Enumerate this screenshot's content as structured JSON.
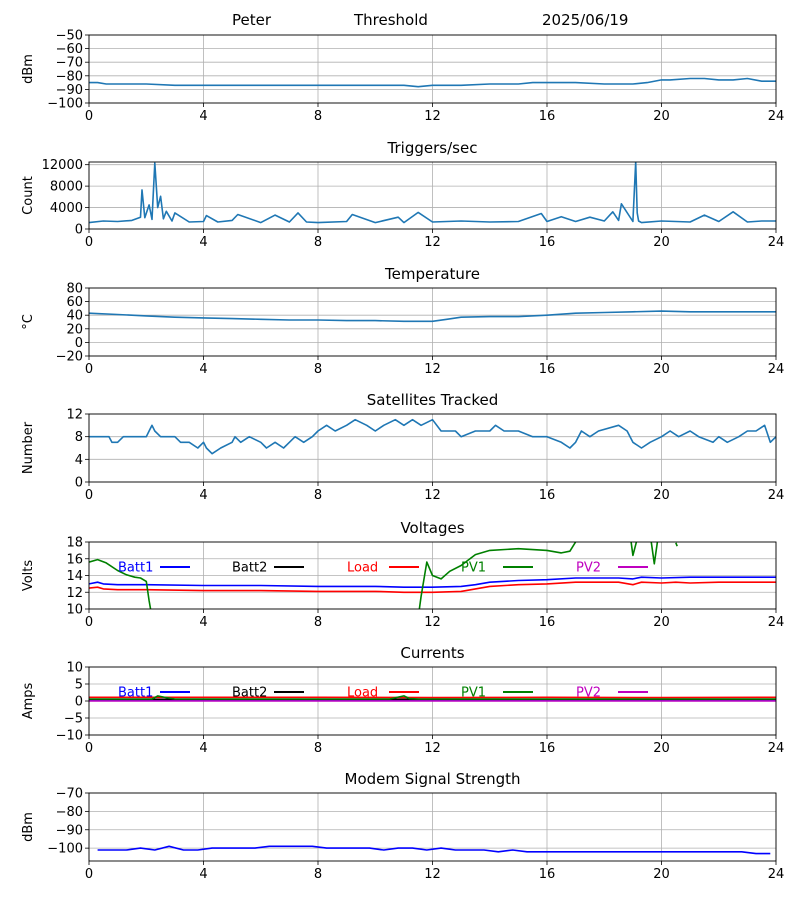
{
  "header": {
    "name": "Peter",
    "mode": "Threshold",
    "date": "2025/06/19"
  },
  "colors": {
    "series_default": "#1f77b4",
    "batt1": "#0000ff",
    "batt2": "#000000",
    "load": "#ff0000",
    "pv1": "#008000",
    "pv2": "#bf00bf",
    "grid": "#b0b0b0"
  },
  "chart_data": [
    {
      "id": "threshold",
      "type": "line",
      "title": "",
      "xlabel": "",
      "ylabel": "dBm",
      "xlim": [
        0,
        24
      ],
      "ylim": [
        -100,
        -50
      ],
      "xticks": [
        0,
        4,
        8,
        12,
        16,
        20,
        24
      ],
      "yticks": [
        -100,
        -90,
        -80,
        -70,
        -60,
        -50
      ],
      "grid": true,
      "series": [
        {
          "color_key": "series_default",
          "x": [
            0,
            0.3,
            0.6,
            1,
            2,
            3,
            4,
            6,
            8,
            10,
            11,
            11.5,
            12,
            13,
            14,
            15,
            15.5,
            16,
            17,
            18,
            19,
            19.5,
            20,
            20.3,
            21,
            21.5,
            22,
            22.5,
            23,
            23.5,
            24
          ],
          "y": [
            -85,
            -85,
            -86,
            -86,
            -86,
            -87,
            -87,
            -87,
            -87,
            -87,
            -87,
            -88,
            -87,
            -87,
            -86,
            -86,
            -85,
            -85,
            -85,
            -86,
            -86,
            -85,
            -83,
            -83,
            -82,
            -82,
            -83,
            -83,
            -82,
            -84,
            -84
          ]
        }
      ]
    },
    {
      "id": "triggers",
      "type": "line",
      "title": "Triggers/sec",
      "xlabel": "",
      "ylabel": "Count",
      "xlim": [
        0,
        24
      ],
      "ylim": [
        0,
        12500
      ],
      "xticks": [
        0,
        4,
        8,
        12,
        16,
        20,
        24
      ],
      "yticks": [
        0,
        4000,
        8000,
        12000
      ],
      "grid": true,
      "series": [
        {
          "color_key": "series_default",
          "x": [
            0,
            0.5,
            1,
            1.5,
            1.8,
            1.85,
            1.95,
            2.1,
            2.2,
            2.3,
            2.4,
            2.5,
            2.6,
            2.7,
            2.9,
            3,
            3.5,
            4,
            4.1,
            4.5,
            5,
            5.2,
            6,
            6.5,
            7,
            7.3,
            7.6,
            8,
            9,
            9.2,
            10,
            10.8,
            11,
            11.5,
            12,
            13,
            14,
            15,
            15.8,
            16,
            16.5,
            17,
            17.5,
            18,
            18.3,
            18.5,
            18.6,
            19,
            19.1,
            19.15,
            19.2,
            19.3,
            20,
            21,
            21.5,
            22,
            22.5,
            23,
            23.5,
            24
          ],
          "y": [
            1200,
            1500,
            1400,
            1600,
            2200,
            7300,
            2100,
            4500,
            1800,
            12300,
            4000,
            6100,
            1900,
            3300,
            1500,
            3000,
            1300,
            1400,
            2500,
            1300,
            1600,
            2700,
            1200,
            2600,
            1300,
            3000,
            1300,
            1200,
            1400,
            2700,
            1200,
            2200,
            1200,
            3100,
            1300,
            1500,
            1300,
            1400,
            2900,
            1400,
            2300,
            1400,
            2200,
            1500,
            3200,
            1600,
            4700,
            1400,
            12500,
            3000,
            1500,
            1200,
            1500,
            1300,
            2600,
            1400,
            3200,
            1300,
            1500,
            1500
          ]
        }
      ]
    },
    {
      "id": "temperature",
      "type": "line",
      "title": "Temperature",
      "xlabel": "",
      "ylabel": "°C",
      "xlim": [
        0,
        24
      ],
      "ylim": [
        -20,
        80
      ],
      "xticks": [
        0,
        4,
        8,
        12,
        16,
        20,
        24
      ],
      "yticks": [
        -20,
        0,
        20,
        40,
        60,
        80
      ],
      "grid": true,
      "series": [
        {
          "color_key": "series_default",
          "x": [
            0,
            1,
            2,
            3,
            4,
            5,
            6,
            7,
            8,
            9,
            10,
            11,
            12,
            12.5,
            13,
            14,
            15,
            16,
            17,
            18,
            19,
            20,
            21,
            22,
            23,
            24
          ],
          "y": [
            43,
            41,
            39,
            37,
            36,
            35,
            34,
            33,
            33,
            32,
            32,
            31,
            31,
            34,
            37,
            38,
            38,
            40,
            43,
            44,
            45,
            46,
            45,
            45,
            45,
            45
          ]
        }
      ]
    },
    {
      "id": "satellites",
      "type": "line",
      "title": "Satellites Tracked",
      "xlabel": "",
      "ylabel": "Number",
      "xlim": [
        0,
        24
      ],
      "ylim": [
        0,
        12
      ],
      "xticks": [
        0,
        4,
        8,
        12,
        16,
        20,
        24
      ],
      "yticks": [
        0,
        4,
        8,
        12
      ],
      "grid": true,
      "series": [
        {
          "color_key": "series_default",
          "x": [
            0,
            0.7,
            0.8,
            1,
            1.2,
            2,
            2.1,
            2.2,
            2.3,
            2.5,
            2.6,
            3,
            3.2,
            3.5,
            3.8,
            4,
            4.1,
            4.3,
            4.6,
            5,
            5.1,
            5.3,
            5.6,
            6,
            6.2,
            6.5,
            6.8,
            7,
            7.2,
            7.5,
            7.8,
            8,
            8.3,
            8.6,
            9,
            9.3,
            9.7,
            10,
            10.3,
            10.7,
            11,
            11.3,
            11.6,
            12,
            12.3,
            12.8,
            13,
            13.5,
            14,
            14.2,
            14.5,
            15,
            15.5,
            16,
            16.5,
            16.8,
            17,
            17.2,
            17.5,
            17.8,
            18.5,
            18.8,
            19,
            19.3,
            19.6,
            20,
            20.3,
            20.6,
            21,
            21.3,
            21.8,
            22,
            22.3,
            22.7,
            23,
            23.3,
            23.6,
            23.8,
            24
          ],
          "y": [
            8,
            8,
            7,
            7,
            8,
            8,
            9,
            10,
            9,
            8,
            8,
            8,
            7,
            7,
            6,
            7,
            6,
            5,
            6,
            7,
            8,
            7,
            8,
            7,
            6,
            7,
            6,
            7,
            8,
            7,
            8,
            9,
            10,
            9,
            10,
            11,
            10,
            9,
            10,
            11,
            10,
            11,
            10,
            11,
            9,
            9,
            8,
            9,
            9,
            10,
            9,
            9,
            8,
            8,
            7,
            6,
            7,
            9,
            8,
            9,
            10,
            9,
            7,
            6,
            7,
            8,
            9,
            8,
            9,
            8,
            7,
            8,
            7,
            8,
            9,
            9,
            10,
            7,
            8
          ]
        }
      ]
    },
    {
      "id": "voltages",
      "type": "line",
      "title": "Voltages",
      "xlabel": "",
      "ylabel": "Volts",
      "xlim": [
        0,
        24
      ],
      "ylim": [
        10,
        18
      ],
      "xticks": [
        0,
        4,
        8,
        12,
        16,
        20,
        24
      ],
      "yticks": [
        10,
        12,
        14,
        16,
        18
      ],
      "grid": true,
      "legend_position": "inside-top",
      "series": [
        {
          "name": "Batt1",
          "color_key": "batt1",
          "x": [
            0,
            0.3,
            0.5,
            1,
            2,
            4,
            6,
            8,
            10,
            11,
            12,
            13,
            13.5,
            14,
            15,
            16,
            17,
            18,
            18.5,
            19,
            19.3,
            20,
            21,
            22,
            23,
            24
          ],
          "y": [
            13.0,
            13.2,
            13.0,
            12.9,
            12.9,
            12.8,
            12.8,
            12.7,
            12.7,
            12.6,
            12.6,
            12.7,
            12.9,
            13.2,
            13.4,
            13.5,
            13.7,
            13.7,
            13.7,
            13.6,
            13.8,
            13.7,
            13.8,
            13.8,
            13.8,
            13.8
          ]
        },
        {
          "name": "Batt2",
          "color_key": "batt2",
          "x": [],
          "y": []
        },
        {
          "name": "Load",
          "color_key": "load",
          "x": [
            0,
            0.3,
            0.5,
            1,
            2,
            4,
            6,
            8,
            10,
            11,
            12,
            13,
            13.5,
            14,
            15,
            16,
            17,
            18,
            18.5,
            19,
            19.3,
            20,
            20.5,
            21,
            22,
            23,
            24
          ],
          "y": [
            12.5,
            12.6,
            12.4,
            12.3,
            12.3,
            12.2,
            12.2,
            12.1,
            12.1,
            12.0,
            12.0,
            12.1,
            12.4,
            12.7,
            12.9,
            13.0,
            13.2,
            13.2,
            13.2,
            12.9,
            13.2,
            13.1,
            13.2,
            13.1,
            13.2,
            13.2,
            13.2
          ]
        },
        {
          "name": "PV1",
          "color_key": "pv1",
          "x": [
            0,
            0.3,
            0.6,
            1,
            1.3,
            1.6,
            1.8,
            2,
            2.1,
            2.2,
            11.5,
            11.6,
            11.8,
            12,
            12.3,
            12.6,
            13,
            13.5,
            14,
            15,
            16,
            16.5,
            16.8,
            17,
            17.2
          ],
          "y": [
            15.6,
            15.9,
            15.5,
            14.6,
            14.1,
            13.8,
            13.7,
            13.3,
            11.0,
            9.0,
            9.0,
            11.5,
            15.6,
            14.0,
            13.6,
            14.5,
            15.2,
            16.5,
            17.0,
            17.2,
            17.0,
            16.7,
            16.9,
            18.0,
            19.0
          ]
        },
        {
          "name": "PV2",
          "color_key": "pv2",
          "x": [],
          "y": []
        }
      ],
      "extra_segments": [
        {
          "color_key": "pv1",
          "x": [
            18.9,
            19.0,
            19.2
          ],
          "y": [
            19.0,
            16.4,
            19.0
          ]
        },
        {
          "color_key": "pv1",
          "x": [
            19.6,
            19.75,
            19.9
          ],
          "y": [
            19.0,
            15.4,
            19.0
          ]
        },
        {
          "color_key": "pv1",
          "x": [
            20.5,
            20.55
          ],
          "y": [
            17.9,
            17.5
          ]
        }
      ]
    },
    {
      "id": "currents",
      "type": "line",
      "title": "Currents",
      "xlabel": "",
      "ylabel": "Amps",
      "xlim": [
        0,
        24
      ],
      "ylim": [
        -10,
        10
      ],
      "xticks": [
        0,
        4,
        8,
        12,
        16,
        20,
        24
      ],
      "yticks": [
        -10,
        -5,
        0,
        5,
        10
      ],
      "grid": true,
      "legend_position": "inside-top",
      "series": [
        {
          "name": "Batt1",
          "color_key": "batt1",
          "x": [
            0,
            24
          ],
          "y": [
            0.4,
            0.4
          ]
        },
        {
          "name": "Batt2",
          "color_key": "batt2",
          "x": [
            0,
            24
          ],
          "y": [
            0.5,
            0.5
          ]
        },
        {
          "name": "Load",
          "color_key": "load",
          "x": [
            0,
            4,
            8,
            12,
            16,
            20,
            24
          ],
          "y": [
            1.1,
            1.1,
            1.1,
            1.0,
            1.1,
            1.0,
            1.1
          ]
        },
        {
          "name": "PV1",
          "color_key": "pv1",
          "x": [
            0,
            2.2,
            2.4,
            2.7,
            3.0,
            4,
            8,
            10.5,
            11,
            11.2,
            11.5,
            12,
            16,
            20,
            24
          ],
          "y": [
            0.6,
            0.6,
            1.5,
            1.0,
            0.6,
            0.6,
            0.6,
            0.6,
            1.5,
            0.7,
            0.6,
            0.6,
            0.6,
            0.6,
            0.6
          ]
        },
        {
          "name": "PV2",
          "color_key": "pv2",
          "x": [
            0,
            24
          ],
          "y": [
            0.0,
            0.0
          ]
        }
      ]
    },
    {
      "id": "modem",
      "type": "line",
      "title": "Modem Signal Strength",
      "xlabel": "",
      "ylabel": "dBm",
      "xlim": [
        0,
        24
      ],
      "ylim": [
        -107,
        -70
      ],
      "xticks": [
        0,
        4,
        8,
        12,
        16,
        20,
        24
      ],
      "yticks": [
        -100,
        -90,
        -80,
        -70
      ],
      "grid": true,
      "series": [
        {
          "color_key": "batt1",
          "x": [
            0.3,
            1.3,
            1.8,
            2.3,
            2.8,
            3.3,
            3.8,
            4.3,
            4.8,
            5.8,
            6.3,
            6.8,
            7.8,
            8.3,
            8.8,
            9.8,
            10.3,
            10.8,
            11.3,
            11.8,
            12.3,
            12.8,
            13.8,
            14.3,
            14.8,
            15.3,
            16.3,
            18.3,
            20.3,
            22.8,
            23.3,
            23.8
          ],
          "y": [
            -101,
            -101,
            -100,
            -101,
            -99,
            -101,
            -101,
            -100,
            -100,
            -100,
            -99,
            -99,
            -99,
            -100,
            -100,
            -100,
            -101,
            -100,
            -100,
            -101,
            -100,
            -101,
            -101,
            -102,
            -101,
            -102,
            -102,
            -102,
            -102,
            -102,
            -103,
            -103
          ]
        }
      ]
    }
  ]
}
